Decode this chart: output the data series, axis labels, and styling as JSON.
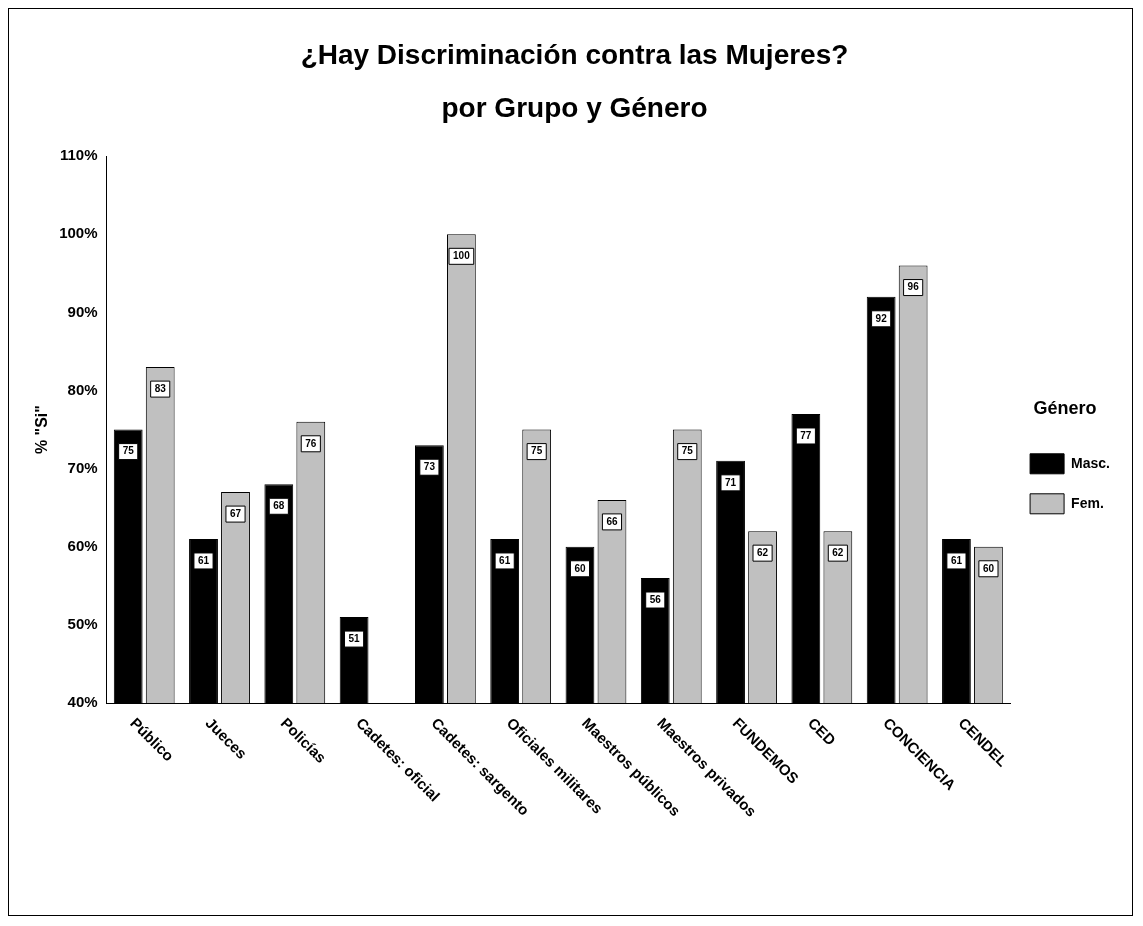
{
  "chart_data": {
    "type": "bar",
    "title": "¿Hay Discriminación contra las Mujeres?",
    "subtitle": "por Grupo y Género",
    "ylabel": "% \"Si\"",
    "legend_title": "Género",
    "categories": [
      "Público",
      "Jueces",
      "Policías",
      "Cadetes: oficial",
      "Cadetes: sargento",
      "Oficiales militares",
      "Maestros públicos",
      "Maestros privados",
      "FUNDEMOS",
      "CED",
      "CONCIENCIA",
      "CENDEL"
    ],
    "series": [
      {
        "name": "Masc.",
        "color": "#000000",
        "values": [
          75,
          61,
          68,
          51,
          73,
          61,
          60,
          56,
          71,
          77,
          92,
          61
        ]
      },
      {
        "name": "Fem.",
        "color": "#c0c0c0",
        "values": [
          83,
          67,
          76,
          null,
          100,
          75,
          66,
          75,
          62,
          62,
          96,
          60
        ]
      }
    ],
    "ylim": [
      40,
      110
    ],
    "yticks": [
      {
        "value": 40,
        "label": "40%"
      },
      {
        "value": 50,
        "label": "50%"
      },
      {
        "value": 60,
        "label": "60%"
      },
      {
        "value": 70,
        "label": "70%"
      },
      {
        "value": 80,
        "label": "80%"
      },
      {
        "value": 90,
        "label": "90%"
      },
      {
        "value": 100,
        "label": "100%"
      },
      {
        "value": 110,
        "label": "110%"
      }
    ],
    "data_labels": true,
    "legend": "right",
    "grid": false
  }
}
